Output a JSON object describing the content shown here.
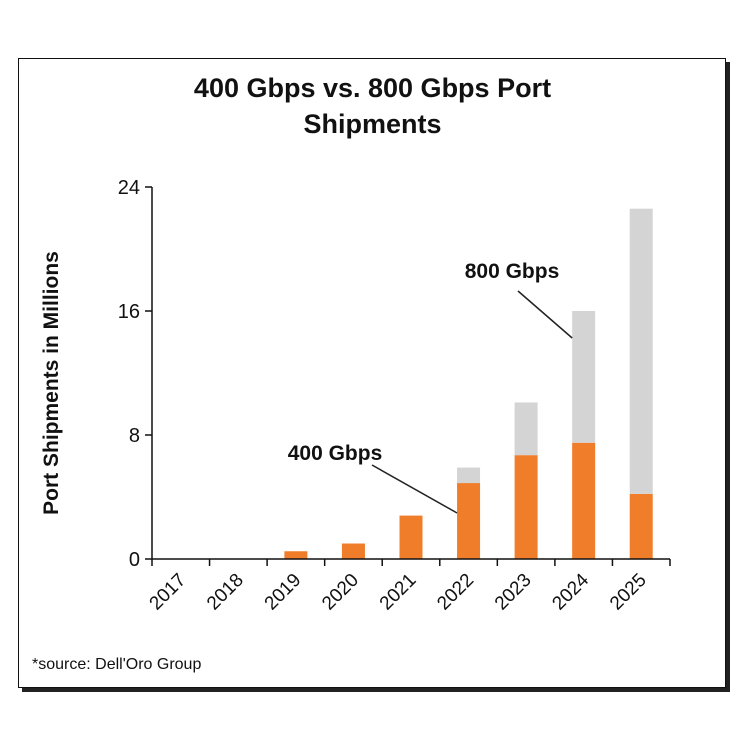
{
  "chart_data": {
    "type": "bar",
    "stacked": true,
    "title": "400 Gbps vs. 800 Gbps Port Shipments",
    "xlabel": "",
    "ylabel": "Port Shipments in Millions",
    "ylim": [
      0,
      24
    ],
    "yticks": [
      0,
      8,
      16,
      24
    ],
    "grid": false,
    "categories": [
      "2017",
      "2018",
      "2019",
      "2020",
      "2021",
      "2022",
      "2023",
      "2024",
      "2025"
    ],
    "series": [
      {
        "name": "400 Gbps",
        "color": "#f07d2a",
        "values": [
          0,
          0,
          0.5,
          1.0,
          2.8,
          4.9,
          6.7,
          7.5,
          4.2
        ]
      },
      {
        "name": "800 Gbps",
        "color": "#d4d4d4",
        "values": [
          0,
          0,
          0,
          0,
          0,
          1.0,
          3.4,
          8.5,
          18.4
        ]
      }
    ],
    "annotations": [
      {
        "text": "400 Gbps",
        "points_to": "2022"
      },
      {
        "text": "800 Gbps",
        "points_to": "2024"
      }
    ],
    "source": "*source: Dell'Oro Group"
  }
}
